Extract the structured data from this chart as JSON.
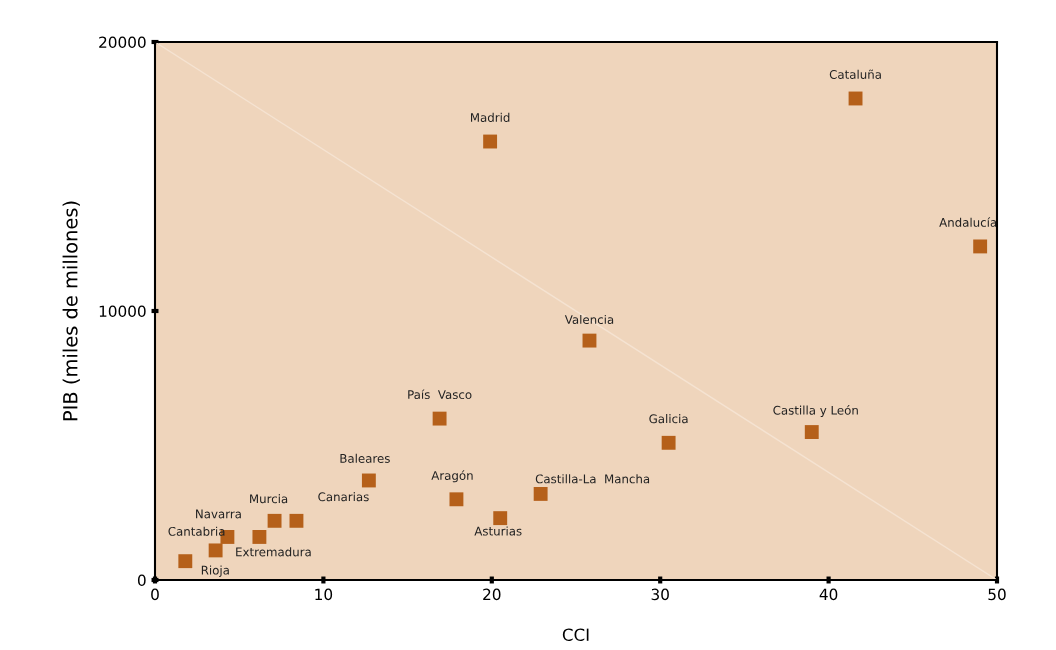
{
  "chart_data": {
    "type": "scatter",
    "xlabel": "CCI",
    "ylabel": "PIB (miles de millones)",
    "xlim": [
      0,
      50
    ],
    "ylim": [
      0,
      20000
    ],
    "xticks": [
      0,
      10,
      20,
      30,
      40,
      50
    ],
    "yticks": [
      0,
      10000,
      20000
    ],
    "grid": false,
    "legend": false,
    "marker": "square",
    "series": [
      {
        "type": "line",
        "marker": "none",
        "color": "#f5e3d2",
        "x": [
          0,
          50
        ],
        "values": [
          20000,
          0
        ]
      },
      {
        "color": "#b5601a",
        "x": [
          41.6,
          19.9,
          49.0,
          25.8,
          16.9,
          30.5,
          39.0,
          12.7,
          17.9,
          22.9,
          20.5,
          7.1,
          8.4,
          4.3,
          6.2,
          3.6,
          1.8
        ],
        "values": [
          17900,
          16300,
          12400,
          8900,
          6000,
          5100,
          5500,
          3700,
          3000,
          3200,
          2300,
          2200,
          2200,
          1600,
          1600,
          1100,
          700
        ]
      }
    ],
    "annotations": [
      {
        "text": "Cataluña",
        "x": 41.6,
        "y": 17900
      },
      {
        "text": "Madrid",
        "x": 19.9,
        "y": 16300
      },
      {
        "text": "Andalucía",
        "x": 49.0,
        "y": 12400
      },
      {
        "text": "Valencia",
        "x": 25.8,
        "y": 8900
      },
      {
        "text": "País  Vasco",
        "x": 16.9,
        "y": 6000
      },
      {
        "text": "Galicia",
        "x": 30.5,
        "y": 5100
      },
      {
        "text": "Castilla y León",
        "x": 39.0,
        "y": 5500
      },
      {
        "text": "Baleares",
        "x": 12.7,
        "y": 3700
      },
      {
        "text": "Aragón",
        "x": 17.9,
        "y": 3000
      },
      {
        "text": "Castilla-La  Mancha",
        "x": 22.9,
        "y": 3200
      },
      {
        "text": "Asturias",
        "x": 20.5,
        "y": 2300
      },
      {
        "text": "Murcia",
        "x": 7.1,
        "y": 2200
      },
      {
        "text": "Canarias",
        "x": 8.4,
        "y": 2200
      },
      {
        "text": "Navarra",
        "x": 4.3,
        "y": 1600
      },
      {
        "text": "Extremadura",
        "x": 6.2,
        "y": 1600
      },
      {
        "text": "Cantabria",
        "x": 3.6,
        "y": 1100
      },
      {
        "text": "Rioja",
        "x": 1.8,
        "y": 700
      }
    ]
  }
}
